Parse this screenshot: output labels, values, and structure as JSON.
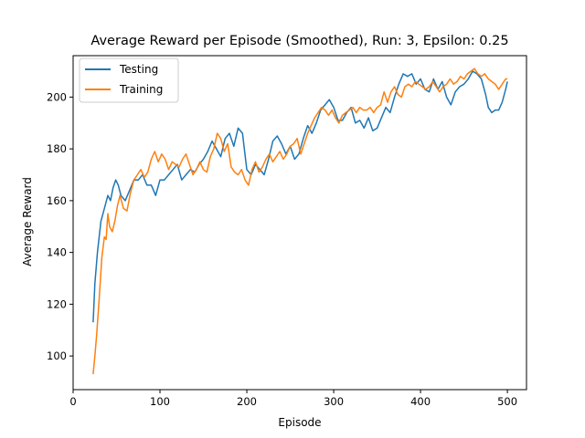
{
  "chart_data": {
    "type": "line",
    "title": "Average Reward per Episode (Smoothed), Run: 3, Epsilon: 0.25",
    "xlabel": "Episode",
    "ylabel": "Average Reward",
    "xlim": [
      0,
      522
    ],
    "ylim": [
      87,
      216
    ],
    "xticks": [
      0,
      100,
      200,
      300,
      400,
      500
    ],
    "yticks": [
      100,
      120,
      140,
      160,
      180,
      200
    ],
    "grid": false,
    "legend": "top-left",
    "series": [
      {
        "name": "Testing",
        "color": "#1f77b4",
        "x": [
          23,
          25,
          28,
          32,
          36,
          40,
          43,
          46,
          49,
          52,
          55,
          60,
          65,
          70,
          75,
          80,
          85,
          90,
          95,
          100,
          105,
          110,
          115,
          120,
          125,
          130,
          135,
          140,
          145,
          150,
          155,
          160,
          165,
          170,
          175,
          180,
          185,
          190,
          195,
          200,
          205,
          210,
          215,
          220,
          225,
          230,
          235,
          240,
          245,
          250,
          255,
          260,
          265,
          270,
          275,
          280,
          285,
          290,
          295,
          300,
          305,
          310,
          315,
          320,
          325,
          330,
          335,
          340,
          345,
          350,
          355,
          360,
          365,
          370,
          375,
          380,
          385,
          390,
          395,
          400,
          405,
          410,
          415,
          420,
          425,
          430,
          435,
          440,
          445,
          450,
          455,
          460,
          465,
          470,
          475,
          478,
          482,
          486,
          490,
          494,
          498,
          500
        ],
        "values": [
          113,
          128,
          140,
          152,
          157,
          162,
          160,
          165,
          168,
          166,
          162,
          160,
          164,
          168,
          168,
          170,
          166,
          166,
          162,
          168,
          168,
          170,
          172,
          174,
          168,
          170,
          172,
          171,
          174,
          176,
          179,
          183,
          180,
          177,
          184,
          186,
          181,
          188,
          186,
          172,
          170,
          174,
          172,
          170,
          176,
          183,
          185,
          182,
          178,
          181,
          176,
          178,
          184,
          189,
          186,
          190,
          195,
          197,
          199,
          196,
          191,
          191,
          194,
          196,
          190,
          191,
          188,
          192,
          187,
          188,
          192,
          196,
          194,
          200,
          205,
          209,
          208,
          209,
          205,
          207,
          203,
          202,
          207,
          203,
          206,
          200,
          197,
          202,
          204,
          205,
          207,
          210,
          209,
          207,
          201,
          196,
          194,
          195,
          195,
          198,
          203,
          206
        ]
      },
      {
        "name": "Training",
        "color": "#ff7f0e",
        "x": [
          23,
          25,
          27,
          30,
          33,
          36,
          38,
          40,
          42,
          45,
          48,
          51,
          54,
          58,
          62,
          66,
          70,
          74,
          78,
          82,
          86,
          90,
          94,
          98,
          102,
          106,
          110,
          114,
          118,
          122,
          126,
          130,
          134,
          138,
          142,
          146,
          150,
          154,
          158,
          162,
          166,
          170,
          174,
          178,
          182,
          186,
          190,
          194,
          198,
          202,
          206,
          210,
          214,
          218,
          222,
          226,
          230,
          234,
          238,
          242,
          246,
          250,
          254,
          258,
          262,
          266,
          270,
          274,
          278,
          282,
          286,
          290,
          294,
          298,
          302,
          306,
          310,
          314,
          318,
          322,
          326,
          330,
          334,
          338,
          342,
          346,
          350,
          354,
          358,
          362,
          366,
          370,
          374,
          378,
          382,
          386,
          390,
          394,
          398,
          402,
          406,
          410,
          414,
          418,
          422,
          426,
          430,
          434,
          438,
          442,
          446,
          450,
          454,
          458,
          462,
          466,
          470,
          474,
          478,
          482,
          486,
          490,
          494,
          498,
          500
        ],
        "values": [
          93,
          100,
          108,
          122,
          138,
          146,
          145,
          155,
          150,
          148,
          152,
          158,
          162,
          157,
          156,
          163,
          168,
          170,
          172,
          169,
          171,
          176,
          179,
          175,
          178,
          176,
          172,
          175,
          174,
          173,
          176,
          178,
          174,
          170,
          172,
          175,
          172,
          171,
          177,
          180,
          186,
          184,
          179,
          182,
          173,
          171,
          170,
          172,
          168,
          166,
          172,
          175,
          171,
          173,
          176,
          178,
          175,
          177,
          179,
          176,
          178,
          181,
          182,
          184,
          178,
          182,
          186,
          189,
          192,
          194,
          196,
          195,
          193,
          195,
          192,
          190,
          193,
          194,
          195,
          196,
          194,
          196,
          195,
          195,
          196,
          194,
          196,
          197,
          202,
          198,
          202,
          204,
          201,
          200,
          204,
          205,
          204,
          206,
          205,
          204,
          203,
          204,
          206,
          204,
          202,
          204,
          205,
          207,
          205,
          206,
          208,
          207,
          209,
          210,
          211,
          209,
          208,
          209,
          207,
          206,
          205,
          203,
          205,
          207,
          207
        ]
      }
    ]
  }
}
